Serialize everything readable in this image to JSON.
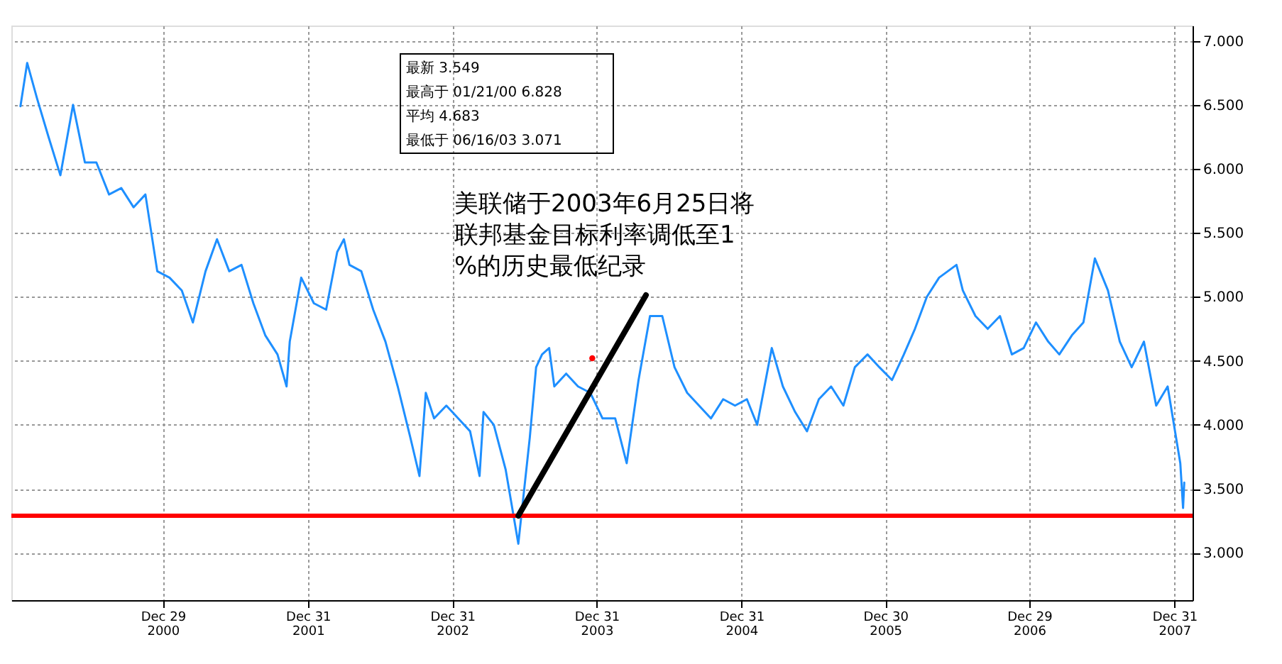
{
  "chart_data": {
    "type": "line",
    "series": [
      {
        "color": "#1e8fff",
        "x": [
          "2000-01-04",
          "2000-01-21",
          "2000-02-15",
          "2000-03-15",
          "2000-04-14",
          "2000-05-16",
          "2000-06-15",
          "2000-07-14",
          "2000-08-15",
          "2000-09-15",
          "2000-10-16",
          "2000-11-15",
          "2000-12-15",
          "2001-01-15",
          "2001-02-15",
          "2001-03-15",
          "2001-04-16",
          "2001-05-15",
          "2001-06-15",
          "2001-07-16",
          "2001-08-15",
          "2001-09-14",
          "2001-10-15",
          "2001-11-07",
          "2001-11-15",
          "2001-12-14",
          "2002-01-15",
          "2002-02-15",
          "2002-03-15",
          "2002-04-01",
          "2002-04-15",
          "2002-05-15",
          "2002-06-14",
          "2002-07-15",
          "2002-08-15",
          "2002-09-16",
          "2002-10-09",
          "2002-10-25",
          "2002-11-15",
          "2002-12-16",
          "2003-01-15",
          "2003-02-14",
          "2003-03-10",
          "2003-03-20",
          "2003-04-15",
          "2003-05-15",
          "2003-06-16",
          "2003-07-15",
          "2003-07-31",
          "2003-08-15",
          "2003-09-02",
          "2003-09-15",
          "2003-10-15",
          "2003-11-14",
          "2003-12-15",
          "2004-01-15",
          "2004-02-16",
          "2004-03-16",
          "2004-04-15",
          "2004-05-14",
          "2004-06-14",
          "2004-07-15",
          "2004-08-16",
          "2004-09-15",
          "2004-10-15",
          "2004-11-15",
          "2004-12-15",
          "2005-01-14",
          "2005-02-09",
          "2005-03-18",
          "2005-04-15",
          "2005-05-16",
          "2005-06-15",
          "2005-07-15",
          "2005-08-15",
          "2005-09-15",
          "2005-10-14",
          "2005-11-15",
          "2005-12-15",
          "2006-01-16",
          "2006-02-15",
          "2006-03-15",
          "2006-04-14",
          "2006-05-15",
          "2006-06-28",
          "2006-07-14",
          "2006-08-15",
          "2006-09-15",
          "2006-10-16",
          "2006-11-15",
          "2006-12-15",
          "2007-01-15",
          "2007-02-15",
          "2007-03-15",
          "2007-04-16",
          "2007-05-15",
          "2007-06-13",
          "2007-07-16",
          "2007-08-15",
          "2007-09-14",
          "2007-10-15",
          "2007-11-15",
          "2007-12-14",
          "2008-01-15",
          "2008-01-22",
          "2008-01-25"
        ],
        "values": [
          6.49,
          6.828,
          6.55,
          6.25,
          5.95,
          6.5,
          6.05,
          6.05,
          5.8,
          5.85,
          5.7,
          5.8,
          5.2,
          5.15,
          5.05,
          4.8,
          5.2,
          5.45,
          5.2,
          5.25,
          4.95,
          4.7,
          4.55,
          4.3,
          4.65,
          5.15,
          4.95,
          4.9,
          5.35,
          5.45,
          5.25,
          5.2,
          4.9,
          4.65,
          4.3,
          3.9,
          3.6,
          4.25,
          4.05,
          4.15,
          4.05,
          3.95,
          3.6,
          4.1,
          4.0,
          3.65,
          3.071,
          3.9,
          4.45,
          4.55,
          4.6,
          4.3,
          4.4,
          4.3,
          4.25,
          4.05,
          4.05,
          3.7,
          4.35,
          4.85,
          4.85,
          4.45,
          4.25,
          4.15,
          4.05,
          4.2,
          4.15,
          4.2,
          4.0,
          4.6,
          4.3,
          4.1,
          3.95,
          4.2,
          4.3,
          4.15,
          4.45,
          4.55,
          4.45,
          4.35,
          4.55,
          4.75,
          5.0,
          5.15,
          5.25,
          5.05,
          4.85,
          4.75,
          4.85,
          4.55,
          4.6,
          4.8,
          4.65,
          4.55,
          4.7,
          4.8,
          5.3,
          5.05,
          4.65,
          4.45,
          4.65,
          4.15,
          4.3,
          3.7,
          3.35,
          3.549
        ]
      },
      {
        "type": "scatter",
        "color": "#ff0000",
        "x": [
          "2003-12-20"
        ],
        "values": [
          4.52
        ]
      }
    ],
    "xlim": [
      "1999-12-12",
      "2008-02-15"
    ],
    "xticks": [
      {
        "value": "2000-12-29",
        "label": "Dec 29\n2000"
      },
      {
        "value": "2001-12-31",
        "label": "Dec 31\n2001"
      },
      {
        "value": "2002-12-31",
        "label": "Dec 31\n2002"
      },
      {
        "value": "2003-12-31",
        "label": "Dec 31\n2003"
      },
      {
        "value": "2004-12-31",
        "label": "Dec 31\n2004"
      },
      {
        "value": "2005-12-30",
        "label": "Dec 30\n2005"
      },
      {
        "value": "2006-12-29",
        "label": "Dec 29\n2006"
      },
      {
        "value": "2007-12-31",
        "label": "Dec 31\n2007"
      }
    ],
    "ylim": [
      2.63,
      7.12
    ],
    "yticks": [
      {
        "value": 3,
        "label": "3.000"
      },
      {
        "value": 3.5,
        "label": "3.500"
      },
      {
        "value": 4,
        "label": "4.000"
      },
      {
        "value": 4.5,
        "label": "4.500"
      },
      {
        "value": 5,
        "label": "5.000"
      },
      {
        "value": 5.5,
        "label": "5.500"
      },
      {
        "value": 6,
        "label": "6.000"
      },
      {
        "value": 6.5,
        "label": "6.500"
      },
      {
        "value": 7,
        "label": "7.000"
      }
    ],
    "grid": true,
    "ref_lines": [
      {
        "axis": "y",
        "value": 3.29,
        "color": "#ff0000"
      }
    ],
    "annotations": [
      "最新 3.549",
      "最高于 01/21/00 6.828",
      "平均 4.683",
      "最低于 06/16/03 3.071",
      {
        "text": "美联储于2003年6月25日将联邦基金目标利率调低至1%的历史最低纪录",
        "x": "2003-06-16",
        "y": 3.29
      }
    ]
  }
}
